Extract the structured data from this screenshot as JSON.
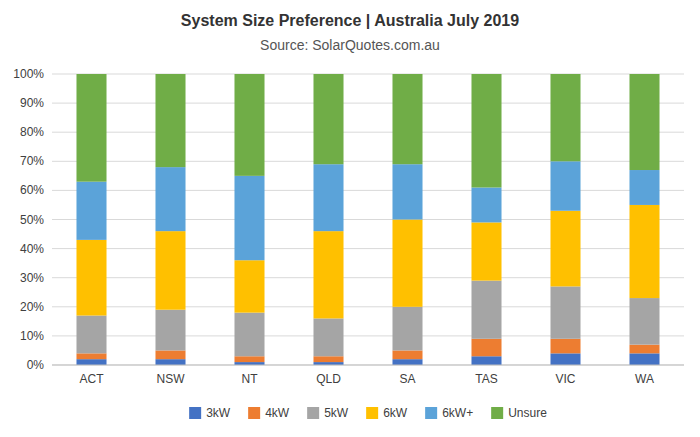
{
  "chart_data": {
    "type": "bar",
    "stacked": true,
    "title": "System Size Preference  |  Australia July 2019",
    "subtitle": "Source: SolarQuotes.com.au",
    "categories": [
      "ACT",
      "NSW",
      "NT",
      "QLD",
      "SA",
      "TAS",
      "VIC",
      "WA"
    ],
    "series": [
      {
        "name": "3kW",
        "color": "#4472c4",
        "values": [
          2,
          2,
          1,
          1,
          2,
          3,
          4,
          4
        ]
      },
      {
        "name": "4kW",
        "color": "#ed7d31",
        "values": [
          2,
          3,
          2,
          2,
          3,
          6,
          5,
          3
        ]
      },
      {
        "name": "5kW",
        "color": "#a5a5a5",
        "values": [
          13,
          14,
          15,
          13,
          15,
          20,
          18,
          16
        ]
      },
      {
        "name": "6kW",
        "color": "#ffc000",
        "values": [
          26,
          27,
          18,
          30,
          30,
          20,
          26,
          32
        ]
      },
      {
        "name": "6kW+",
        "color": "#5ba3d9",
        "values": [
          20,
          22,
          29,
          23,
          19,
          12,
          17,
          12
        ]
      },
      {
        "name": "Unsure",
        "color": "#70ad47",
        "values": [
          37,
          32,
          35,
          31,
          31,
          39,
          30,
          33
        ]
      }
    ],
    "ylim": [
      0,
      100
    ],
    "yticks": [
      {
        "value": 0,
        "label": "0%"
      },
      {
        "value": 10,
        "label": "10%"
      },
      {
        "value": 20,
        "label": "20%"
      },
      {
        "value": 30,
        "label": "30%"
      },
      {
        "value": 40,
        "label": "40%"
      },
      {
        "value": 50,
        "label": "50%"
      },
      {
        "value": 60,
        "label": "60%"
      },
      {
        "value": 70,
        "label": "70%"
      },
      {
        "value": 80,
        "label": "80%"
      },
      {
        "value": 90,
        "label": "90%"
      },
      {
        "value": 100,
        "label": "100%"
      }
    ],
    "grid": true,
    "legend": "bottom"
  }
}
